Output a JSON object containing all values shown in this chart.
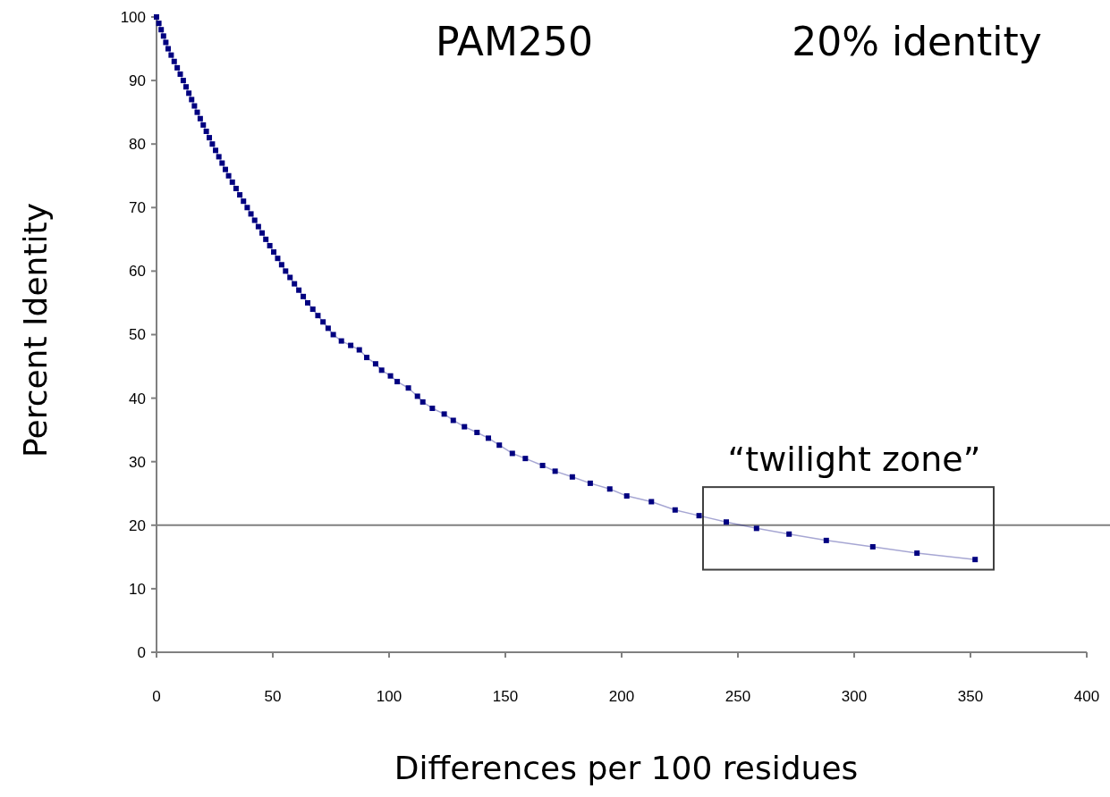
{
  "chart_data": {
    "type": "line",
    "xlabel": "Differences per 100 residues",
    "ylabel": "Percent Identity",
    "xlim": [
      0,
      400
    ],
    "xticks": [
      0,
      50,
      100,
      150,
      200,
      250,
      300,
      350,
      400
    ],
    "ylim": [
      0,
      100
    ],
    "yticks": [
      0,
      10,
      20,
      30,
      40,
      50,
      60,
      70,
      80,
      90,
      100
    ],
    "grid": false,
    "marker": "square",
    "line_style": "solid",
    "annotations": [
      "PAM250",
      "20% identity",
      "“twilight zone”"
    ],
    "ref_lines": [
      {
        "axis": "y",
        "value": 20,
        "color": "#808080"
      }
    ],
    "series": [
      {
        "color": "#000080",
        "x": [
          0,
          1,
          2,
          3,
          4,
          5,
          6.3,
          7.6,
          8.9,
          10.2,
          11.5,
          12.7,
          13.9,
          15.1,
          16.3,
          17.5,
          18.8,
          20.1,
          21.4,
          22.7,
          24,
          25.4,
          26.8,
          28.2,
          29.6,
          31,
          32.6,
          34.2,
          35.8,
          37.4,
          39,
          40.6,
          42.2,
          43.8,
          45.4,
          47,
          48.7,
          50.4,
          52.1,
          53.8,
          55.5,
          57.4,
          59.3,
          61.2,
          63.1,
          65,
          67.2,
          69.4,
          71.6,
          73.8,
          76,
          79.5,
          83.5,
          87.2,
          90.4,
          94.2,
          96.8,
          100.6,
          103.5,
          108.3,
          112.2,
          114.5,
          118.6,
          123.7,
          127.6,
          132.4,
          137.8,
          142.7,
          147.4,
          153,
          158.6,
          166,
          171.4,
          178.8,
          186.5,
          194.9,
          202.2,
          212.8,
          223,
          233.3,
          245,
          258,
          272,
          288,
          308,
          327,
          352
        ],
        "values": [
          100,
          99,
          98,
          97,
          96,
          95,
          94,
          93,
          92,
          91,
          90,
          89,
          88,
          87,
          86,
          85,
          84,
          83,
          82,
          81,
          80,
          79,
          78,
          77,
          76,
          75,
          74,
          73,
          72,
          71,
          70,
          69,
          68,
          67,
          66,
          65,
          64,
          63,
          62,
          61,
          60,
          59,
          58,
          57,
          56,
          55,
          54,
          53,
          52,
          51,
          50,
          49,
          48.3,
          47.6,
          46.4,
          45.4,
          44.4,
          43.5,
          42.6,
          41.6,
          40.3,
          39.4,
          38.4,
          37.5,
          36.5,
          35.5,
          34.6,
          33.7,
          32.6,
          31.3,
          30.5,
          29.4,
          28.5,
          27.6,
          26.6,
          25.7,
          24.6,
          23.7,
          22.4,
          21.5,
          20.5,
          19.5,
          18.6,
          17.6,
          16.6,
          15.6,
          14.6
        ]
      }
    ]
  }
}
